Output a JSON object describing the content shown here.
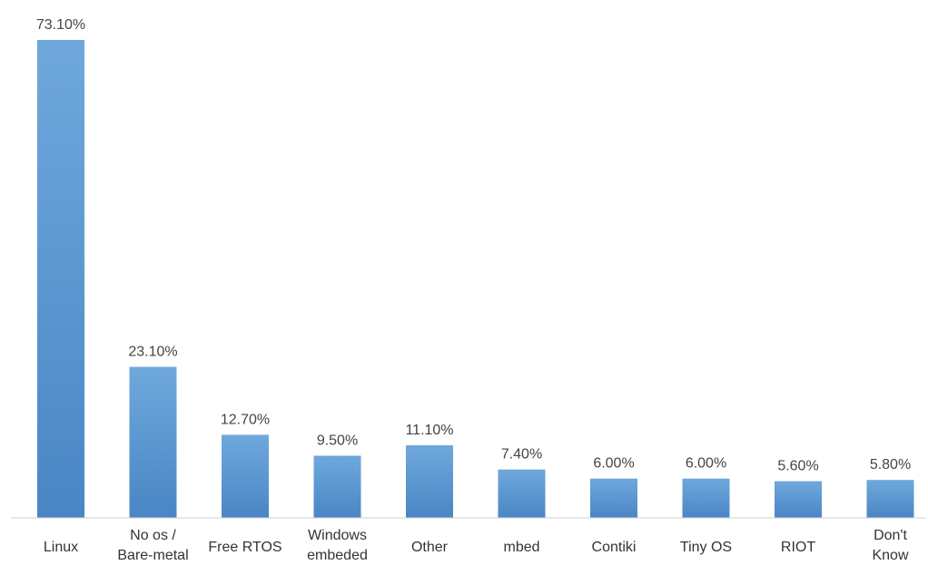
{
  "chart_data": {
    "type": "bar",
    "categories": [
      "Linux",
      "No os / Bare-metal",
      "Free RTOS",
      "Windows embeded",
      "Other",
      "mbed",
      "Contiki",
      "Tiny OS",
      "RIOT",
      "Don't Know"
    ],
    "category_lines": [
      [
        "Linux"
      ],
      [
        "No os /",
        "Bare-metal"
      ],
      [
        "Free RTOS"
      ],
      [
        "Windows",
        "embeded"
      ],
      [
        "Other"
      ],
      [
        "mbed"
      ],
      [
        "Contiki"
      ],
      [
        "Tiny OS"
      ],
      [
        "RIOT"
      ],
      [
        "Don't",
        "Know"
      ]
    ],
    "values": [
      73.1,
      23.1,
      12.7,
      9.5,
      11.1,
      7.4,
      6.0,
      6.0,
      5.6,
      5.8
    ],
    "value_labels": [
      "73.10%",
      "23.10%",
      "12.70%",
      "9.50%",
      "11.10%",
      "7.40%",
      "6.00%",
      "6.00%",
      "5.60%",
      "5.80%"
    ],
    "ylim": [
      0,
      73.1
    ],
    "grid": false,
    "bar_color": "#5b9bd5",
    "bar_color_top": "#6fa8dc",
    "bar_color_bottom": "#4a86c5",
    "axis_color": "#d0d0d0"
  }
}
